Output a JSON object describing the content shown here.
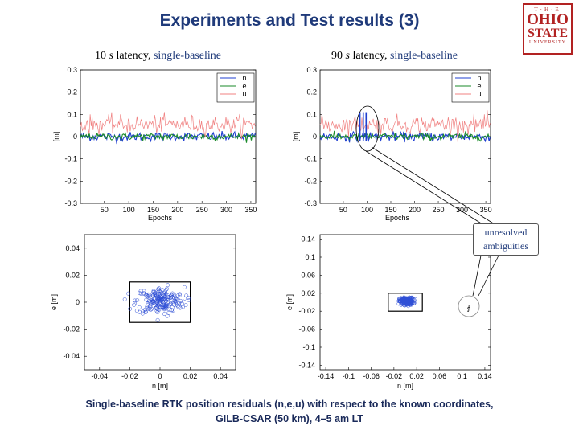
{
  "slide": {
    "title": "Experiments and Test results (3)",
    "logo": {
      "line1": "T·H·E",
      "line2": "OHIO",
      "line3": "STATE",
      "line4": "UNIVERSITY"
    },
    "subtitle_left": {
      "prefix": "10 ",
      "unit": "s",
      "middle": " latency, ",
      "suffix": "single-baseline"
    },
    "subtitle_right": {
      "prefix": "90 ",
      "unit": "s",
      "middle": " latency, ",
      "suffix": "single-baseline"
    },
    "callout": {
      "text": "unresolved ambiguities",
      "symbol": "∮"
    },
    "caption_line1": "Single-baseline RTK position residuals (n,e,u) with respect to the known coordinates,",
    "caption_line2": "GILB-CSAR (50 km), 4–5 am LT"
  },
  "chart_data": [
    {
      "type": "line",
      "x_range": [
        1,
        360
      ],
      "ylim": [
        -0.3,
        0.3
      ],
      "xticks": [
        50,
        100,
        150,
        200,
        250,
        300,
        350
      ],
      "yticks": [
        -0.3,
        -0.2,
        -0.1,
        0,
        0.1,
        0.2,
        0.3
      ],
      "ytick_labels": [
        "-0.3",
        "-0.2",
        "-0.1",
        "0",
        "0.1",
        "0.2",
        "0.3"
      ],
      "xlabel": "Epochs",
      "ylabel": "[m]",
      "legend_position": "top-right",
      "series": [
        {
          "name": "n",
          "color": "#1f3fd0",
          "mean": 0.0,
          "noise": 0.01
        },
        {
          "name": "e",
          "color": "#1a8a2a",
          "mean": 0.0,
          "noise": 0.008
        },
        {
          "name": "u",
          "color": "#f08080",
          "mean": 0.055,
          "noise": 0.02
        }
      ]
    },
    {
      "type": "line",
      "x_range": [
        1,
        360
      ],
      "ylim": [
        -0.3,
        0.3
      ],
      "xticks": [
        50,
        100,
        150,
        200,
        250,
        300,
        350
      ],
      "yticks": [
        -0.3,
        -0.2,
        -0.1,
        0,
        0.1,
        0.2,
        0.3
      ],
      "ytick_labels": [
        "-0.3",
        "-0.2",
        "-0.1",
        "0",
        "0.1",
        "0.2",
        "0.3"
      ],
      "xlabel": "Epochs",
      "ylabel": "[m]",
      "legend_position": "top-right",
      "spikes": {
        "x": [
          85,
          92,
          98
        ],
        "peak": 0.11
      },
      "series": [
        {
          "name": "n",
          "color": "#1f3fd0",
          "mean": 0.0,
          "noise": 0.01
        },
        {
          "name": "e",
          "color": "#1a8a2a",
          "mean": 0.0,
          "noise": 0.008
        },
        {
          "name": "u",
          "color": "#f08080",
          "mean": 0.055,
          "noise": 0.02
        }
      ]
    },
    {
      "type": "scatter",
      "xlim": [
        -0.05,
        0.05
      ],
      "ylim": [
        -0.05,
        0.05
      ],
      "xticks": [
        -0.04,
        -0.02,
        0,
        0.02,
        0.04
      ],
      "xtick_labels": [
        "-0.04",
        "-0.02",
        "0",
        "0.02",
        "0.04"
      ],
      "yticks": [
        -0.04,
        -0.02,
        0,
        0.02,
        0.04
      ],
      "ytick_labels": [
        "-0.04",
        "-0.02",
        "0",
        "0.02",
        "0.04"
      ],
      "xlabel": "n [m]",
      "ylabel": "e [m]",
      "box": [
        -0.02,
        0.02,
        -0.015,
        0.015
      ],
      "cloud": {
        "center_x": 0.0,
        "center_y": 0.001,
        "spread_x": 0.008,
        "spread_y": 0.005,
        "count": 220
      },
      "color": "#2f4fd6"
    },
    {
      "type": "scatter",
      "xlim": [
        -0.15,
        0.15
      ],
      "ylim": [
        -0.15,
        0.15
      ],
      "xticks": [
        -0.14,
        -0.1,
        -0.06,
        -0.02,
        0.02,
        0.06,
        0.1,
        0.14
      ],
      "xtick_labels": [
        "-0.14",
        "-0.1",
        "-0.06",
        "-0.02",
        "0.02",
        "0.06",
        "0.1",
        "0.14"
      ],
      "yticks": [
        -0.14,
        -0.1,
        -0.06,
        -0.02,
        0.02,
        0.06,
        0.1,
        0.14
      ],
      "ytick_labels": [
        "-0.14",
        "-0.1",
        "-0.06",
        "-0.02",
        "0.02",
        "0.06",
        "0.1",
        "0.14"
      ],
      "xlabel": "n [m]",
      "ylabel": "e [m]",
      "box": [
        -0.03,
        0.03,
        -0.02,
        0.02
      ],
      "cloud": {
        "center_x": 0.002,
        "center_y": 0.002,
        "spread_x": 0.006,
        "spread_y": 0.004,
        "count": 220
      },
      "color": "#2f4fd6"
    }
  ]
}
